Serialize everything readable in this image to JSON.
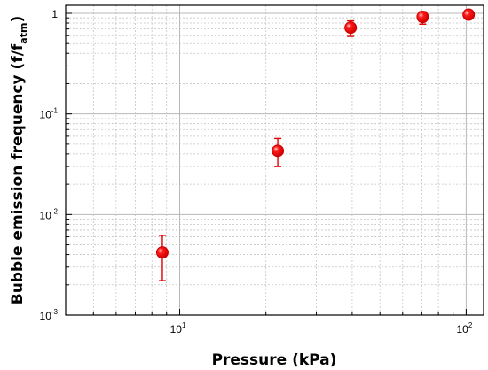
{
  "chart_data": {
    "type": "scatter",
    "title": "",
    "xlabel": "Pressure (kPa)",
    "ylabel": "Bubble emission frequency (f/f",
    "ylabel_subscript": "atm",
    "ylabel_close": ")",
    "x_scale": "log",
    "y_scale": "log",
    "xlim": [
      4,
      115
    ],
    "ylim": [
      0.001,
      1.2
    ],
    "grid": true,
    "legend": "none",
    "marker_color": "#ff1a1a",
    "marker_edge_color": "#cc0000",
    "errorbar_color": "#e00000",
    "x_ticks": [
      {
        "value": 10,
        "base": "10",
        "exp": "1"
      },
      {
        "value": 100,
        "base": "10",
        "exp": "2"
      }
    ],
    "y_ticks": [
      {
        "value": 0.001,
        "base": "10",
        "exp": "-3"
      },
      {
        "value": 0.01,
        "base": "10",
        "exp": "-2"
      },
      {
        "value": 0.1,
        "base": "10",
        "exp": "-1"
      },
      {
        "value": 1,
        "base": "1",
        "exp": ""
      }
    ],
    "points": [
      {
        "x": 8.7,
        "y": 0.0042,
        "y_low": 0.0022,
        "y_high": 0.0062
      },
      {
        "x": 22,
        "y": 0.043,
        "y_low": 0.03,
        "y_high": 0.057
      },
      {
        "x": 39.5,
        "y": 0.72,
        "y_low": 0.59,
        "y_high": 0.84
      },
      {
        "x": 70.5,
        "y": 0.92,
        "y_low": 0.78,
        "y_high": 1.04
      },
      {
        "x": 102,
        "y": 0.97,
        "y_low": 0.96,
        "y_high": 0.98
      }
    ]
  }
}
